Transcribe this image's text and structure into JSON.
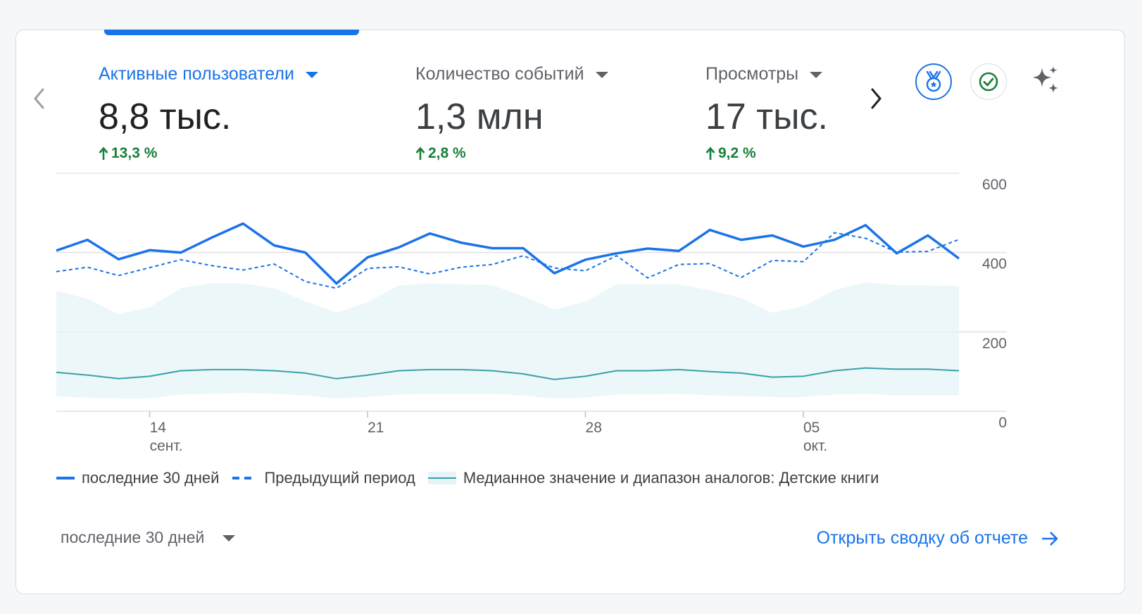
{
  "metrics": [
    {
      "title": "Активные пользователи",
      "value": "8,8 тыс.",
      "change": "13,3 %",
      "active": true
    },
    {
      "title": "Количество событий",
      "value": "1,3 млн",
      "change": "2,8 %",
      "active": false
    },
    {
      "title": "Просмотры",
      "value": "17 тыс.",
      "change": "9,2 %",
      "active": false
    }
  ],
  "icons": {
    "prev": "chevron-left-icon",
    "next": "chevron-right-icon",
    "medal": "medal-icon",
    "check": "check-circle-icon",
    "sparkle": "sparkle-icon",
    "open_arrow": "arrow-right-icon"
  },
  "colors": {
    "accent": "#1a73e8",
    "positive": "#188038",
    "benchmark_line": "#3aa0a8",
    "benchmark_band": "#e6f4f7"
  },
  "chart_data": {
    "type": "line",
    "x_tick_labels": [
      {
        "day": "14",
        "month": "сент."
      },
      {
        "day": "21",
        "month": ""
      },
      {
        "day": "28",
        "month": ""
      },
      {
        "day": "05",
        "month": "окт."
      }
    ],
    "y_ticks": [
      0,
      200,
      400,
      600
    ],
    "ylim": [
      0,
      600
    ],
    "grid": true,
    "legend_position": "bottom-left",
    "series": [
      {
        "name": "последние 30 дней",
        "style": "solid",
        "values": [
          405,
          432,
          383,
          406,
          400,
          438,
          473,
          418,
          400,
          322,
          388,
          413,
          448,
          425,
          411,
          411,
          348,
          382,
          398,
          410,
          404,
          457,
          432,
          443,
          415,
          432,
          469,
          398,
          443,
          385
        ]
      },
      {
        "name": "Предыдущий период",
        "style": "dashed",
        "values": [
          352,
          363,
          342,
          362,
          382,
          367,
          356,
          371,
          327,
          310,
          360,
          364,
          346,
          363,
          370,
          392,
          361,
          354,
          392,
          336,
          370,
          372,
          337,
          380,
          377,
          450,
          436,
          401,
          403,
          433
        ]
      },
      {
        "name": "Медианное значение и диапазон аналогов: Детские книги",
        "style": "band",
        "median": [
          98,
          91,
          82,
          88,
          102,
          105,
          105,
          102,
          96,
          82,
          91,
          102,
          105,
          105,
          102,
          94,
          80,
          88,
          102,
          102,
          105,
          100,
          96,
          86,
          88,
          102,
          109,
          106,
          106,
          102
        ],
        "upper": [
          304,
          283,
          245,
          262,
          310,
          323,
          322,
          310,
          277,
          248,
          275,
          317,
          322,
          320,
          318,
          290,
          256,
          276,
          320,
          320,
          320,
          305,
          285,
          248,
          265,
          305,
          325,
          317,
          317,
          315
        ],
        "lower": [
          38,
          34,
          32,
          32,
          42,
          44,
          46,
          44,
          40,
          32,
          36,
          42,
          44,
          44,
          44,
          40,
          32,
          34,
          42,
          42,
          44,
          40,
          38,
          36,
          36,
          42,
          44,
          40,
          40,
          40
        ]
      }
    ]
  },
  "footer": {
    "period_label": "последние 30 дней",
    "open_report_label": "Открыть сводку об отчете"
  }
}
